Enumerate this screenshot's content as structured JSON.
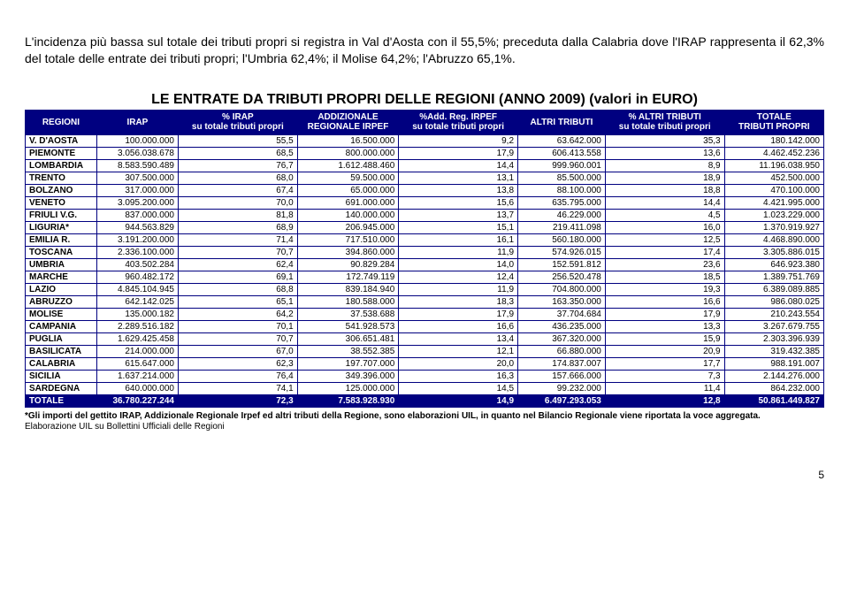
{
  "intro": "L'incidenza più bassa sul totale dei tributi propri si registra in Val d'Aosta con il 55,5%; preceduta dalla Calabria dove l'IRAP rappresenta il 62,3% del totale delle entrate dei tributi propri; l'Umbria 62,4%; il Molise 64,2%; l'Abruzzo 65,1%.",
  "table": {
    "title": "LE ENTRATE DA TRIBUTI PROPRI DELLE REGIONI (ANNO 2009) (valori in EURO)",
    "header": {
      "regioni": "REGIONI",
      "irap": "IRAP",
      "p_irap_l1": "% IRAP",
      "p_irap_l2": "su totale tributi propri",
      "addiz_l1": "ADDIZIONALE",
      "addiz_l2": "REGIONALE IRPEF",
      "p_addiz_l1": "%Add. Reg. IRPEF",
      "p_addiz_l2": "su totale tributi propri",
      "altri": "ALTRI TRIBUTI",
      "p_altri_l1": "% ALTRI TRIBUTI",
      "p_altri_l2": "su totale tributi propri",
      "totale_l1": "TOTALE",
      "totale_l2": "TRIBUTI PROPRI"
    },
    "rows": [
      {
        "r": "V. D'AOSTA",
        "irap": "100.000.000",
        "pirap": "55,5",
        "addiz": "16.500.000",
        "paddiz": "9,2",
        "altri": "63.642.000",
        "paltri": "35,3",
        "tot": "180.142.000"
      },
      {
        "r": "PIEMONTE",
        "irap": "3.056.038.678",
        "pirap": "68,5",
        "addiz": "800.000.000",
        "paddiz": "17,9",
        "altri": "606.413.558",
        "paltri": "13,6",
        "tot": "4.462.452.236"
      },
      {
        "r": "LOMBARDIA",
        "irap": "8.583.590.489",
        "pirap": "76,7",
        "addiz": "1.612.488.460",
        "paddiz": "14,4",
        "altri": "999.960.001",
        "paltri": "8,9",
        "tot": "11.196.038.950"
      },
      {
        "r": "TRENTO",
        "irap": "307.500.000",
        "pirap": "68,0",
        "addiz": "59.500.000",
        "paddiz": "13,1",
        "altri": "85.500.000",
        "paltri": "18,9",
        "tot": "452.500.000"
      },
      {
        "r": "BOLZANO",
        "irap": "317.000.000",
        "pirap": "67,4",
        "addiz": "65.000.000",
        "paddiz": "13,8",
        "altri": "88.100.000",
        "paltri": "18,8",
        "tot": "470.100.000"
      },
      {
        "r": "VENETO",
        "irap": "3.095.200.000",
        "pirap": "70,0",
        "addiz": "691.000.000",
        "paddiz": "15,6",
        "altri": "635.795.000",
        "paltri": "14,4",
        "tot": "4.421.995.000"
      },
      {
        "r": "FRIULI V.G.",
        "irap": "837.000.000",
        "pirap": "81,8",
        "addiz": "140.000.000",
        "paddiz": "13,7",
        "altri": "46.229.000",
        "paltri": "4,5",
        "tot": "1.023.229.000"
      },
      {
        "r": "LIGURIA*",
        "irap": "944.563.829",
        "pirap": "68,9",
        "addiz": "206.945.000",
        "paddiz": "15,1",
        "altri": "219.411.098",
        "paltri": "16,0",
        "tot": "1.370.919.927"
      },
      {
        "r": "EMILIA R.",
        "irap": "3.191.200.000",
        "pirap": "71,4",
        "addiz": "717.510.000",
        "paddiz": "16,1",
        "altri": "560.180.000",
        "paltri": "12,5",
        "tot": "4.468.890.000"
      },
      {
        "r": "TOSCANA",
        "irap": "2.336.100.000",
        "pirap": "70,7",
        "addiz": "394.860.000",
        "paddiz": "11,9",
        "altri": "574.926.015",
        "paltri": "17,4",
        "tot": "3.305.886.015"
      },
      {
        "r": "UMBRIA",
        "irap": "403.502.284",
        "pirap": "62,4",
        "addiz": "90.829.284",
        "paddiz": "14,0",
        "altri": "152.591.812",
        "paltri": "23,6",
        "tot": "646.923.380"
      },
      {
        "r": "MARCHE",
        "irap": "960.482.172",
        "pirap": "69,1",
        "addiz": "172.749.119",
        "paddiz": "12,4",
        "altri": "256.520.478",
        "paltri": "18,5",
        "tot": "1.389.751.769"
      },
      {
        "r": "LAZIO",
        "irap": "4.845.104.945",
        "pirap": "68,8",
        "addiz": "839.184.940",
        "paddiz": "11,9",
        "altri": "704.800.000",
        "paltri": "19,3",
        "tot": "6.389.089.885"
      },
      {
        "r": "ABRUZZO",
        "irap": "642.142.025",
        "pirap": "65,1",
        "addiz": "180.588.000",
        "paddiz": "18,3",
        "altri": "163.350.000",
        "paltri": "16,6",
        "tot": "986.080.025"
      },
      {
        "r": "MOLISE",
        "irap": "135.000.182",
        "pirap": "64,2",
        "addiz": "37.538.688",
        "paddiz": "17,9",
        "altri": "37.704.684",
        "paltri": "17,9",
        "tot": "210.243.554"
      },
      {
        "r": "CAMPANIA",
        "irap": "2.289.516.182",
        "pirap": "70,1",
        "addiz": "541.928.573",
        "paddiz": "16,6",
        "altri": "436.235.000",
        "paltri": "13,3",
        "tot": "3.267.679.755"
      },
      {
        "r": "PUGLIA",
        "irap": "1.629.425.458",
        "pirap": "70,7",
        "addiz": "306.651.481",
        "paddiz": "13,4",
        "altri": "367.320.000",
        "paltri": "15,9",
        "tot": "2.303.396.939"
      },
      {
        "r": "BASILICATA",
        "irap": "214.000.000",
        "pirap": "67,0",
        "addiz": "38.552.385",
        "paddiz": "12,1",
        "altri": "66.880.000",
        "paltri": "20,9",
        "tot": "319.432.385"
      },
      {
        "r": "CALABRIA",
        "irap": "615.647.000",
        "pirap": "62,3",
        "addiz": "197.707.000",
        "paddiz": "20,0",
        "altri": "174.837.007",
        "paltri": "17,7",
        "tot": "988.191.007"
      },
      {
        "r": "SICILIA",
        "irap": "1.637.214.000",
        "pirap": "76,4",
        "addiz": "349.396.000",
        "paddiz": "16,3",
        "altri": "157.666.000",
        "paltri": "7,3",
        "tot": "2.144.276.000"
      },
      {
        "r": "SARDEGNA",
        "irap": "640.000.000",
        "pirap": "74,1",
        "addiz": "125.000.000",
        "paddiz": "14,5",
        "altri": "99.232.000",
        "paltri": "11,4",
        "tot": "864.232.000"
      }
    ],
    "total": {
      "r": "TOTALE",
      "irap": "36.780.227.244",
      "pirap": "72,3",
      "addiz": "7.583.928.930",
      "paddiz": "14,9",
      "altri": "6.497.293.053",
      "paltri": "12,8",
      "tot": "50.861.449.827"
    }
  },
  "footnote": {
    "line1": "*Gli importi del gettito IRAP, Addizionale Regionale Irpef ed altri tributi della Regione, sono elaborazioni UIL, in quanto nel Bilancio Regionale viene riportata la voce aggregata.",
    "line2": "Elaborazione UIL su Bollettini Ufficiali delle Regioni"
  },
  "page": "5"
}
